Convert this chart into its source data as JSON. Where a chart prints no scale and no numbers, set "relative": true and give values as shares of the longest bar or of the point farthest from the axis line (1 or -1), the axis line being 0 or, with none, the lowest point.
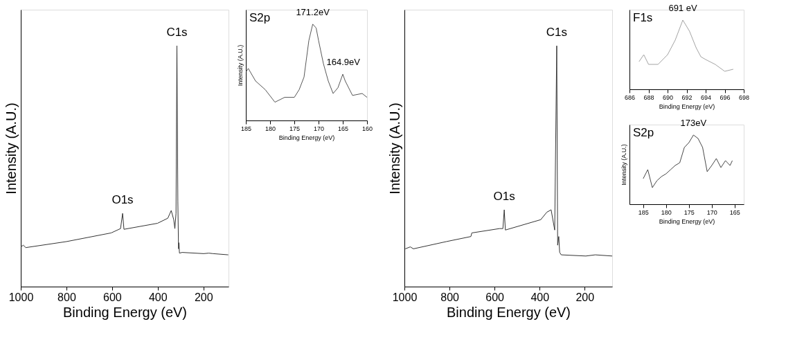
{
  "chart_data": [
    {
      "type": "line",
      "relative": true,
      "xlabel": "Binding Energy (eV)",
      "ylabel": "Intensity (A.U.)",
      "xlim": [
        1000,
        90
      ],
      "xticks": [
        1000,
        800,
        600,
        400,
        200
      ],
      "color": "#333333",
      "x": [
        1000,
        989,
        978,
        800,
        604,
        563,
        554,
        548,
        401,
        356,
        341,
        330,
        325,
        320,
        316,
        312,
        309,
        307,
        305,
        293,
        199,
        176,
        158,
        91
      ],
      "values": [
        0.165,
        0.172,
        0.162,
        0.187,
        0.223,
        0.241,
        0.304,
        0.238,
        0.263,
        0.284,
        0.316,
        0.278,
        0.241,
        0.304,
        1.0,
        0.354,
        0.157,
        0.182,
        0.139,
        0.142,
        0.137,
        0.139,
        0.137,
        0.132
      ],
      "annotations": [
        {
          "text": "C1s",
          "x": 316,
          "y": 1.0
        },
        {
          "text": "O1s",
          "x": 554,
          "y": 0.304
        }
      ]
    },
    {
      "type": "line",
      "relative": true,
      "xlabel": "Binding Energy (eV)",
      "ylabel": "Intensity (A.U.)",
      "xlim": [
        185,
        160
      ],
      "xticks": [
        185,
        180,
        175,
        170,
        165,
        160
      ],
      "color": "#444444",
      "x": [
        185,
        184.5,
        183,
        181,
        179,
        177,
        175,
        174,
        173,
        172,
        171.2,
        170.5,
        170,
        169,
        168,
        167,
        166,
        165,
        164.5,
        163,
        161,
        160
      ],
      "values": [
        0.5,
        0.54,
        0.41,
        0.32,
        0.19,
        0.24,
        0.24,
        0.32,
        0.45,
        0.83,
        1.0,
        0.96,
        0.83,
        0.59,
        0.41,
        0.28,
        0.34,
        0.48,
        0.41,
        0.26,
        0.28,
        0.24
      ],
      "annotations": [
        "S2p",
        {
          "text": "171.2eV",
          "x": 171.2,
          "y": 1.0
        },
        {
          "text": "164.9eV",
          "x": 164.9,
          "y": 0.48
        }
      ]
    },
    {
      "type": "line",
      "relative": true,
      "xlabel": "Binding Energy (eV)",
      "ylabel": "Intensity (A.U.)",
      "xlim": [
        1000,
        78
      ],
      "xticks": [
        1000,
        800,
        600,
        400,
        200
      ],
      "color": "#333333",
      "x": [
        996,
        974,
        960,
        814,
        705,
        701,
        578,
        563,
        557,
        552,
        395,
        368,
        349,
        333,
        324,
        320,
        315,
        311,
        304,
        195,
        153,
        78
      ],
      "values": [
        0.157,
        0.165,
        0.157,
        0.187,
        0.208,
        0.223,
        0.241,
        0.241,
        0.319,
        0.235,
        0.278,
        0.309,
        0.319,
        0.235,
        1.0,
        0.172,
        0.208,
        0.142,
        0.132,
        0.127,
        0.132,
        0.127
      ],
      "annotations": [
        {
          "text": "C1s",
          "x": 324,
          "y": 1.0
        },
        {
          "text": "O1s",
          "x": 557,
          "y": 0.319
        }
      ]
    },
    {
      "type": "line",
      "relative": true,
      "xlabel": "Binding Energy (eV)",
      "xlim": [
        686,
        698
      ],
      "xticks": [
        686,
        688,
        690,
        692,
        694,
        696,
        698
      ],
      "color": "#999999",
      "x": [
        687,
        687.5,
        688,
        689,
        690,
        690.8,
        691.6,
        692.3,
        693,
        693.5,
        694,
        695,
        696,
        696.9
      ],
      "values": [
        0.4,
        0.5,
        0.36,
        0.36,
        0.5,
        0.71,
        1.0,
        0.84,
        0.6,
        0.47,
        0.43,
        0.36,
        0.26,
        0.29
      ],
      "annotations": [
        "F1s",
        {
          "text": "691 eV",
          "x": 691.6,
          "y": 1.0
        }
      ]
    },
    {
      "type": "line",
      "relative": true,
      "xlabel": "Binding Energy (eV)",
      "ylabel": "Intensity (A.U.)",
      "xlim": [
        188,
        163
      ],
      "xticks": [
        185,
        180,
        175,
        170,
        165
      ],
      "color": "#333333",
      "x": [
        185,
        184,
        183,
        182,
        181,
        180,
        179,
        178,
        177,
        176,
        175,
        174,
        173,
        172,
        171,
        170,
        169,
        168,
        167,
        166,
        165.5
      ],
      "values": [
        0.37,
        0.5,
        0.24,
        0.34,
        0.4,
        0.44,
        0.5,
        0.56,
        0.6,
        0.82,
        0.89,
        1.0,
        0.95,
        0.82,
        0.47,
        0.56,
        0.66,
        0.53,
        0.63,
        0.56,
        0.63
      ],
      "annotations": [
        "S2p",
        {
          "text": "173eV",
          "x": 174,
          "y": 1.0
        }
      ]
    }
  ]
}
